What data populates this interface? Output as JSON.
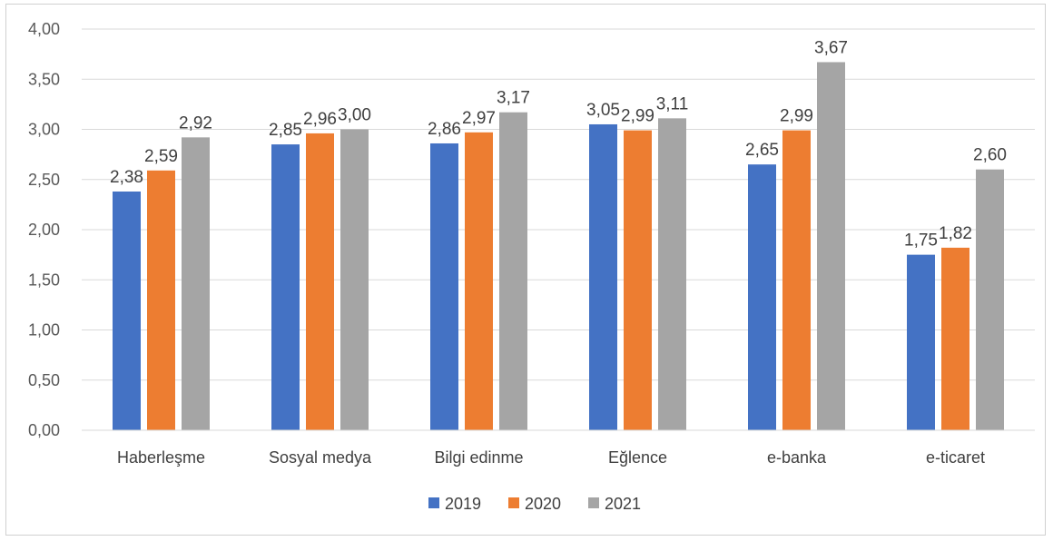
{
  "chart_data": {
    "type": "bar",
    "categories": [
      "Haberleşme",
      "Sosyal medya",
      "Bilgi edinme",
      "Eğlence",
      "e-banka",
      "e-ticaret"
    ],
    "series": [
      {
        "name": "2019",
        "color": "#4472C4",
        "values": [
          2.38,
          2.85,
          2.86,
          3.05,
          2.65,
          1.75
        ],
        "labels": [
          "2,38",
          "2,85",
          "2,86",
          "3,05",
          "2,65",
          "1,75"
        ]
      },
      {
        "name": "2020",
        "color": "#ED7D31",
        "values": [
          2.59,
          2.96,
          2.97,
          2.99,
          2.99,
          1.82
        ],
        "labels": [
          "2,59",
          "2,96",
          "2,97",
          "2,99",
          "2,99",
          "1,82"
        ]
      },
      {
        "name": "2021",
        "color": "#A5A5A5",
        "values": [
          2.92,
          3.0,
          3.17,
          3.11,
          3.67,
          2.6
        ],
        "labels": [
          "2,92",
          "3,00",
          "3,17",
          "3,11",
          "3,67",
          "2,60"
        ]
      }
    ],
    "ylim": [
      0,
      4
    ],
    "yticks": [
      0,
      0.5,
      1,
      1.5,
      2,
      2.5,
      3,
      3.5,
      4
    ],
    "ytick_labels": [
      "0,00",
      "0,50",
      "1,00",
      "1,50",
      "2,00",
      "2,50",
      "3,00",
      "3,50",
      "4,00"
    ],
    "title": "",
    "xlabel": "",
    "ylabel": "",
    "grid": true,
    "legend_position": "bottom"
  }
}
